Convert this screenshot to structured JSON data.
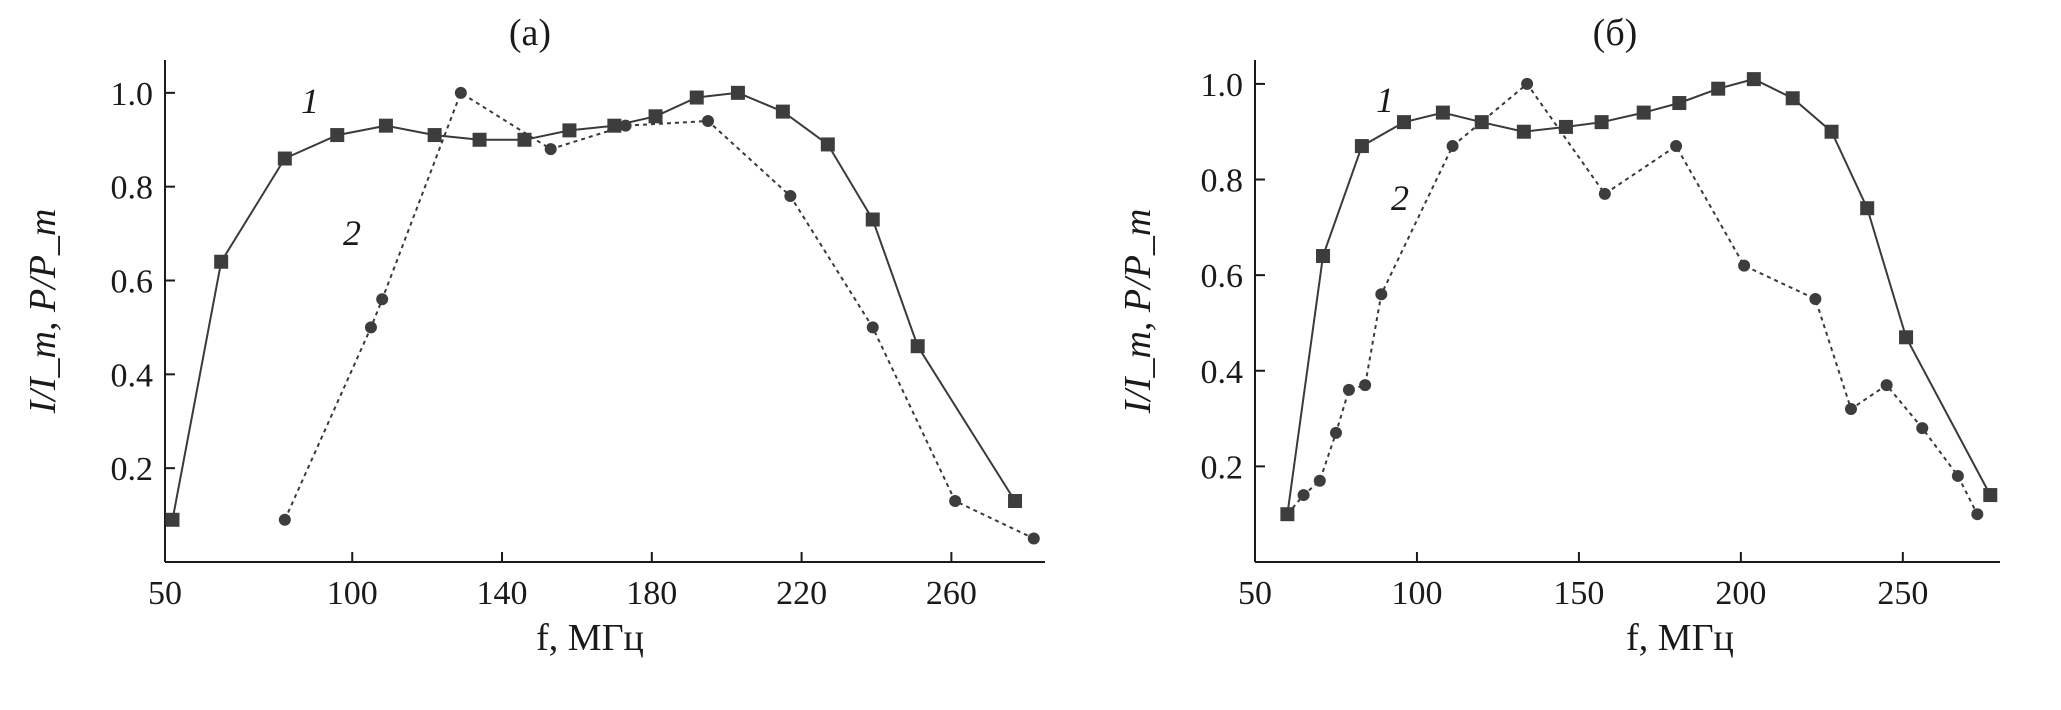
{
  "chart_data": [
    {
      "type": "line",
      "panel_label": "(a)",
      "xlabel": "f, МГц",
      "ylabel": "I/I_m, P/P_m",
      "xlim": [
        50,
        285
      ],
      "ylim": [
        0.0,
        1.07
      ],
      "x_ticks": [
        50,
        100,
        140,
        180,
        220,
        260
      ],
      "y_ticks": [
        0.2,
        0.4,
        0.6,
        0.8,
        1.0
      ],
      "grid": false,
      "series": [
        {
          "name": "1",
          "marker": "square",
          "line_style": "solid",
          "x": [
            52,
            65,
            82,
            96,
            109,
            122,
            134,
            146,
            158,
            170,
            181,
            192,
            203,
            215,
            227,
            239,
            251,
            277
          ],
          "y": [
            0.09,
            0.64,
            0.86,
            0.91,
            0.93,
            0.91,
            0.9,
            0.9,
            0.92,
            0.93,
            0.95,
            0.99,
            1.0,
            0.96,
            0.89,
            0.73,
            0.46,
            0.13
          ]
        },
        {
          "name": "2",
          "marker": "circle",
          "line_style": "dashed",
          "x": [
            82,
            105,
            108,
            129,
            153,
            173,
            195,
            217,
            239,
            261,
            282
          ],
          "y": [
            0.09,
            0.5,
            0.56,
            1.0,
            0.88,
            0.93,
            0.94,
            0.78,
            0.5,
            0.13,
            0.05
          ]
        }
      ]
    },
    {
      "type": "line",
      "panel_label": "(б)",
      "xlabel": "f, МГц",
      "ylabel": "I/I_m, P/P_m",
      "xlim": [
        50,
        280
      ],
      "ylim": [
        0.0,
        1.05
      ],
      "x_ticks": [
        50,
        100,
        150,
        200,
        250
      ],
      "y_ticks": [
        0.2,
        0.4,
        0.6,
        0.8,
        1.0
      ],
      "grid": false,
      "series": [
        {
          "name": "1",
          "marker": "square",
          "line_style": "solid",
          "x": [
            60,
            71,
            83,
            96,
            108,
            120,
            133,
            146,
            157,
            170,
            181,
            193,
            204,
            216,
            228,
            239,
            251,
            277
          ],
          "y": [
            0.1,
            0.64,
            0.87,
            0.92,
            0.94,
            0.92,
            0.9,
            0.91,
            0.92,
            0.94,
            0.96,
            0.99,
            1.01,
            0.97,
            0.9,
            0.74,
            0.47,
            0.14
          ]
        },
        {
          "name": "2",
          "marker": "circle",
          "line_style": "dashed",
          "x": [
            60,
            65,
            70,
            75,
            79,
            84,
            89,
            111,
            134,
            158,
            180,
            201,
            223,
            234,
            245,
            256,
            267,
            273
          ],
          "y": [
            0.1,
            0.14,
            0.17,
            0.27,
            0.36,
            0.37,
            0.56,
            0.87,
            1.0,
            0.77,
            0.87,
            0.62,
            0.55,
            0.32,
            0.37,
            0.28,
            0.18,
            0.1
          ]
        }
      ]
    }
  ]
}
